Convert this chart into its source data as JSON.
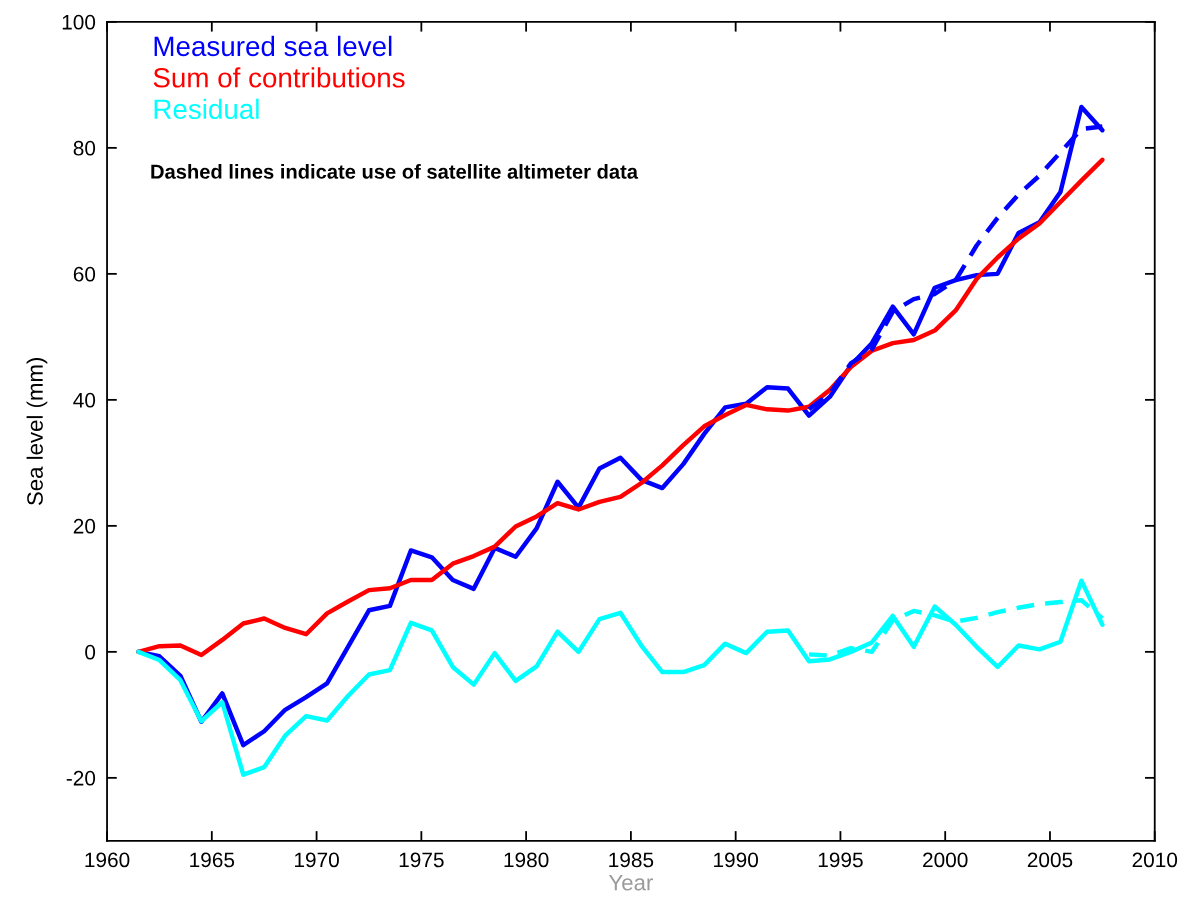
{
  "chart_data": {
    "type": "line",
    "xlabel": "Year",
    "ylabel": "Sea level (mm)",
    "xlim": [
      1960,
      2010
    ],
    "xticks": [
      1960,
      1965,
      1970,
      1975,
      1980,
      1985,
      1990,
      1995,
      2000,
      2005,
      2010
    ],
    "ylim": [
      -30,
      100
    ],
    "yticks": [
      -20,
      0,
      20,
      40,
      60,
      80,
      100
    ],
    "legend": "top left",
    "line_style": "solid",
    "marker": "none",
    "annotations": [
      "Dashed lines indicate use of satellite altimeter data"
    ],
    "series": [
      {
        "name": "Measured sea level",
        "color": "#0000ff",
        "x": [
          1961.5,
          1962.5,
          1963.5,
          1964.5,
          1965.5,
          1966.5,
          1967.5,
          1968.5,
          1969.5,
          1970.5,
          1971.5,
          1972.5,
          1973.5,
          1974.5,
          1975.5,
          1976.5,
          1977.5,
          1978.5,
          1979.5,
          1980.5,
          1981.5,
          1982.5,
          1983.5,
          1984.5,
          1985.5,
          1986.5,
          1987.5,
          1988.5,
          1989.5,
          1990.5,
          1991.5,
          1992.5,
          1993.5,
          1994.5,
          1995.5,
          1996.5,
          1997.5,
          1998.5,
          1999.5,
          2000.5,
          2001.5,
          2002.5,
          2003.5,
          2004.5,
          2005.5,
          2006.5,
          2007.5
        ],
        "values": [
          0,
          -0.7,
          -3.8,
          -11.1,
          -6.6,
          -14.8,
          -12.6,
          -9.2,
          -7.2,
          -5.0,
          0.8,
          6.6,
          7.3,
          16.1,
          15.0,
          11.4,
          10.0,
          16.5,
          15.1,
          19.6,
          27.0,
          22.9,
          29.1,
          30.8,
          27.3,
          26.0,
          29.8,
          34.6,
          38.8,
          39.4,
          42.0,
          41.8,
          37.5,
          40.5,
          45.5,
          49.0,
          54.8,
          50.4,
          57.8,
          59.0,
          59.8,
          60.0,
          66.5,
          68.2,
          73.0,
          86.5,
          82.8
        ]
      },
      {
        "name": "Sum of contributions",
        "color": "#ff0000",
        "x": [
          1961.5,
          1962.5,
          1963.5,
          1964.5,
          1965.5,
          1966.5,
          1967.5,
          1968.5,
          1969.5,
          1970.5,
          1971.5,
          1972.5,
          1973.5,
          1974.5,
          1975.5,
          1976.5,
          1977.5,
          1978.5,
          1979.5,
          1980.5,
          1981.5,
          1982.5,
          1983.5,
          1984.5,
          1985.5,
          1986.5,
          1987.5,
          1988.5,
          1989.5,
          1990.5,
          1991.5,
          1992.5,
          1993.5,
          1994.5,
          1995.5,
          1996.5,
          1997.5,
          1998.5,
          1999.5,
          2000.5,
          2001.5,
          2002.5,
          2003.5,
          2004.5,
          2005.5,
          2006.5,
          2007.5
        ],
        "values": [
          0,
          0.9,
          1.0,
          -0.5,
          1.9,
          4.5,
          5.3,
          3.8,
          2.8,
          6.1,
          8.0,
          9.8,
          10.1,
          11.4,
          11.4,
          14.0,
          15.2,
          16.7,
          19.9,
          21.5,
          23.6,
          22.6,
          23.8,
          24.6,
          26.8,
          29.6,
          32.8,
          35.8,
          37.6,
          39.2,
          38.5,
          38.3,
          38.9,
          41.6,
          45.2,
          47.8,
          49.0,
          49.5,
          51.0,
          54.2,
          59.2,
          62.6,
          65.6,
          68.0,
          71.4,
          74.8,
          78.1
        ]
      },
      {
        "name": "Residual",
        "color": "#00ffff",
        "x": [
          1961.5,
          1962.5,
          1963.5,
          1964.5,
          1965.5,
          1966.5,
          1967.5,
          1968.5,
          1969.5,
          1970.5,
          1971.5,
          1972.5,
          1973.5,
          1974.5,
          1975.5,
          1976.5,
          1977.5,
          1978.5,
          1979.5,
          1980.5,
          1981.5,
          1982.5,
          1983.5,
          1984.5,
          1985.5,
          1986.5,
          1987.5,
          1988.5,
          1989.5,
          1990.5,
          1991.5,
          1992.5,
          1993.5,
          1994.5,
          1995.5,
          1996.5,
          1997.5,
          1998.5,
          1999.5,
          2000.5,
          2001.5,
          2002.5,
          2003.5,
          2004.5,
          2005.5,
          2006.5,
          2007.5
        ],
        "values": [
          0,
          -1.3,
          -4.5,
          -11.0,
          -8.0,
          -19.5,
          -18.3,
          -13.3,
          -10.2,
          -10.9,
          -7.0,
          -3.6,
          -2.9,
          4.6,
          3.4,
          -2.4,
          -5.2,
          -0.2,
          -4.6,
          -2.3,
          3.2,
          0,
          5.2,
          6.2,
          1.0,
          -3.2,
          -3.2,
          -2.1,
          1.3,
          -0.2,
          3.2,
          3.4,
          -1.5,
          -1.2,
          0,
          1.5,
          5.7,
          0.8,
          7.2,
          4.3,
          0.8,
          -2.4,
          1.0,
          0.4,
          1.6,
          11.3,
          4.3
        ]
      },
      {
        "color": "#0000ff",
        "line_style": "dashed",
        "x": [
          1993.5,
          1994.5,
          1995.5,
          1996.5,
          1997.5,
          1998.5,
          1999.5,
          2000.5,
          2001.5,
          2002.5,
          2003.5,
          2004.5,
          2005.5,
          2006.5,
          2007.5
        ],
        "values": [
          38.5,
          41.0,
          45.8,
          48.0,
          54.0,
          56.0,
          56.8,
          59.0,
          64.5,
          68.9,
          72.6,
          75.6,
          79.3,
          83.0,
          83.4
        ]
      },
      {
        "color": "#00ffff",
        "line_style": "dashed",
        "x": [
          1993.5,
          1994.5,
          1995.5,
          1996.5,
          1997.5,
          1998.5,
          1999.5,
          2000.5,
          2001.5,
          2002.5,
          2003.5,
          2004.5,
          2005.5,
          2006.5,
          2007.5
        ],
        "values": [
          -0.4,
          -0.6,
          0.6,
          0.0,
          5.0,
          6.5,
          5.8,
          4.8,
          5.4,
          6.3,
          7.0,
          7.6,
          7.9,
          8.2,
          5.3
        ]
      }
    ]
  }
}
